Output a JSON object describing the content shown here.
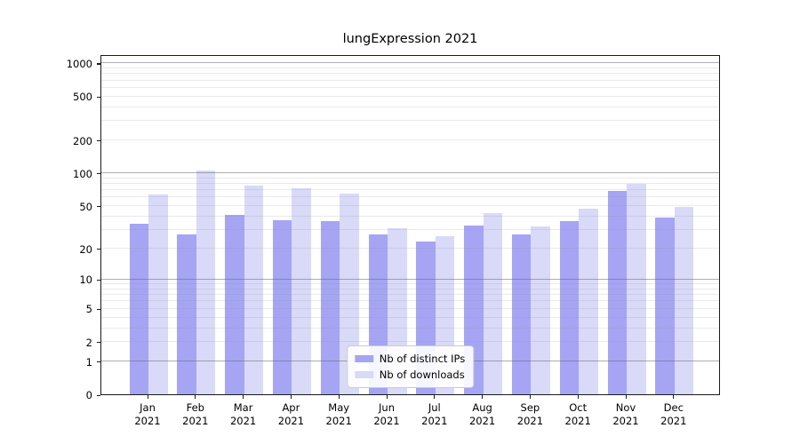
{
  "chart_data": {
    "type": "bar",
    "title": "lungExpression 2021",
    "categories": [
      "Jan",
      "Feb",
      "Mar",
      "Apr",
      "May",
      "Jun",
      "Jul",
      "Aug",
      "Sep",
      "Oct",
      "Nov",
      "Dec"
    ],
    "category_year": "2021",
    "series": [
      {
        "name": "Nb of distinct IPs",
        "color": "#a5a5f3",
        "values": [
          34,
          27,
          41,
          37,
          36,
          27,
          23,
          33,
          27,
          36,
          69,
          39
        ]
      },
      {
        "name": "Nb of downloads",
        "color": "#d9d9f8",
        "values": [
          64,
          105,
          76,
          72,
          65,
          31,
          26,
          43,
          32,
          47,
          80,
          49
        ]
      }
    ],
    "xlabel": "",
    "ylabel": "",
    "yscale": "log1p",
    "ylim": [
      0,
      1200
    ],
    "yticks": [
      0,
      1,
      2,
      5,
      10,
      20,
      50,
      100,
      200,
      500,
      1000
    ],
    "minor_gridline_values": [
      2,
      3,
      4,
      5,
      6,
      7,
      8,
      9,
      20,
      30,
      40,
      50,
      60,
      70,
      80,
      90,
      200,
      300,
      400,
      500,
      600,
      700,
      800,
      900
    ],
    "major_gridline_values": [
      1,
      10,
      100,
      1000
    ],
    "grid": true,
    "legend_position": "lower center"
  }
}
